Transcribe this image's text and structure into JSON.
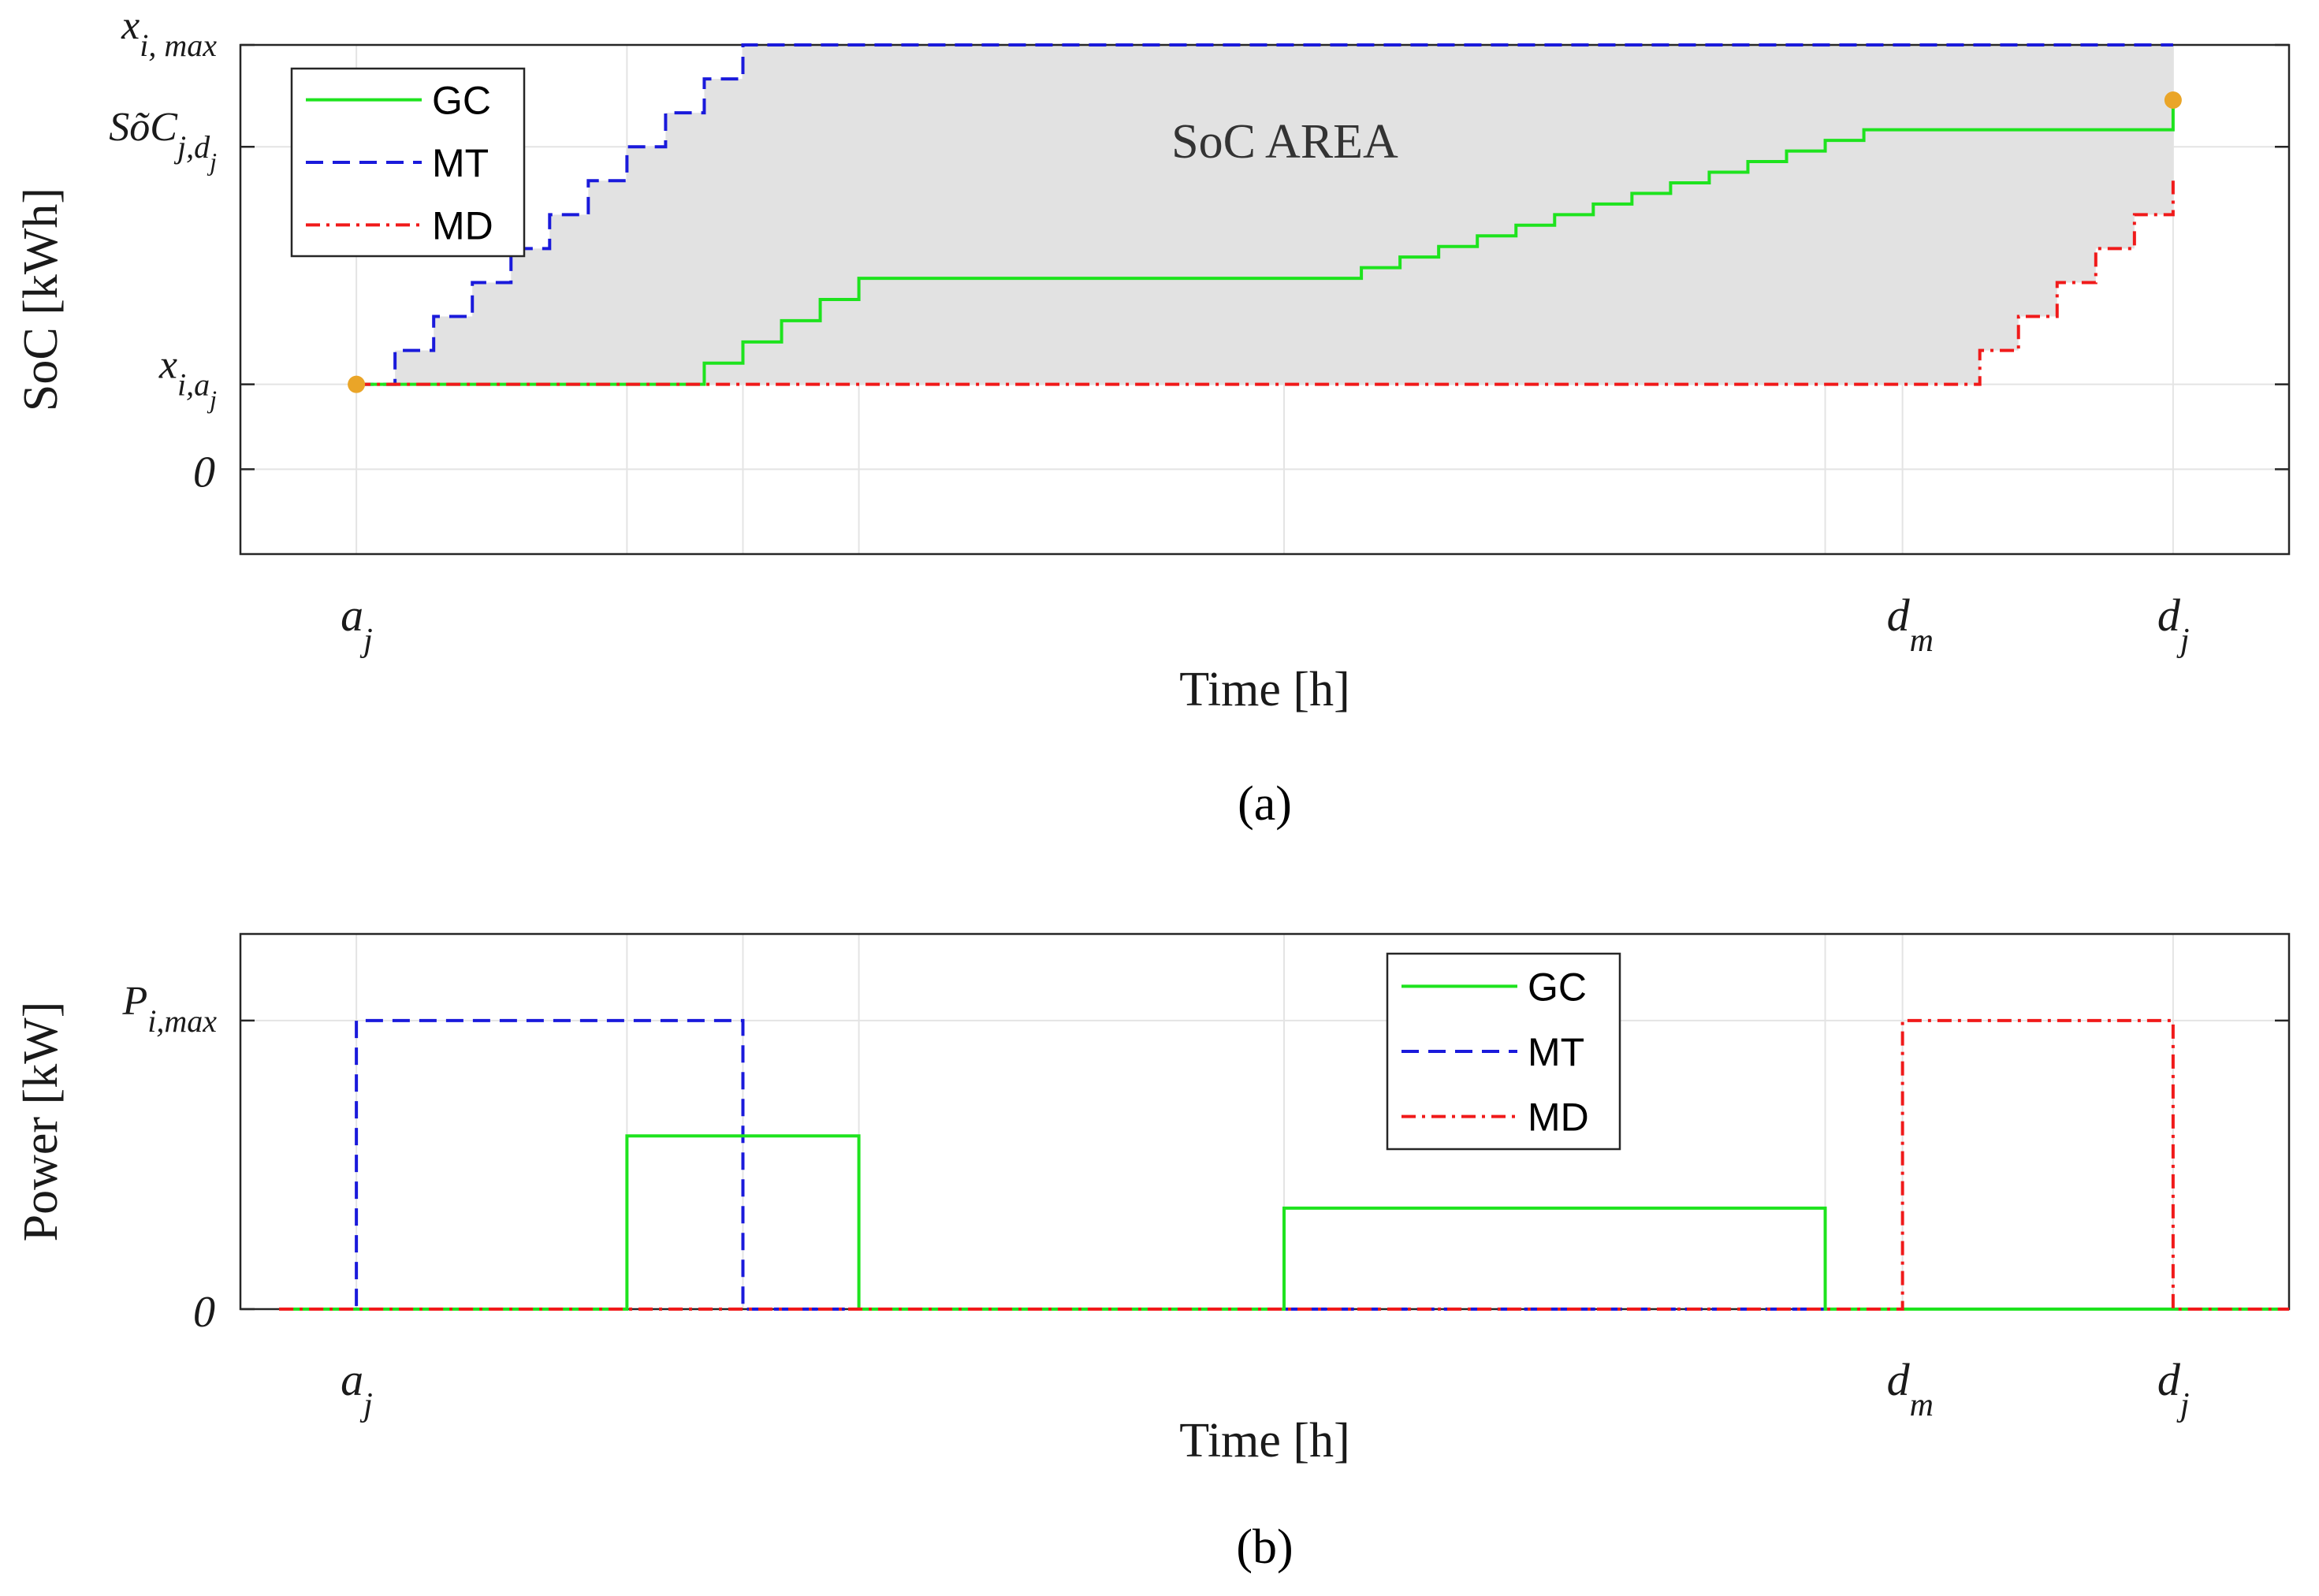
{
  "chart_data": [
    {
      "id": "a",
      "type": "line",
      "step": true,
      "caption": "(a)",
      "ylabel": "SoC [kWh]",
      "xlabel": "Time [h]",
      "area_label": "SoC AREA",
      "xlim": [
        -3,
        50
      ],
      "ylim": [
        -2,
        10
      ],
      "x_ticks": [
        {
          "x": 0,
          "main": "a",
          "sub": "j"
        },
        {
          "x": 40,
          "main": "d",
          "sub": "m"
        },
        {
          "x": 47,
          "main": "d",
          "sub": "j"
        }
      ],
      "y_ticks": [
        {
          "y": 0,
          "label": "0"
        },
        {
          "y": 2,
          "main": "x",
          "sub": "i,a",
          "subsub": "j"
        },
        {
          "y": 7.6,
          "main": "SõC",
          "sub": "j,d",
          "subsub": "j"
        },
        {
          "y": 10,
          "main": "x",
          "sub": "i, max"
        }
      ],
      "endpoints": [
        {
          "x": 0,
          "y": 2,
          "color": "#eaa528"
        },
        {
          "x": 47,
          "y": 8.7,
          "color": "#eaa528"
        }
      ],
      "legend": [
        {
          "name": "GC",
          "color": "#1ee31e",
          "dash": "solid"
        },
        {
          "name": "MT",
          "color": "#1a1adb",
          "dash": "dashed"
        },
        {
          "name": "MD",
          "color": "#f01a1a",
          "dash": "dashdot"
        }
      ],
      "series": [
        {
          "name": "MT",
          "color": "#1a1adb",
          "dash": "dashed",
          "x": [
            0,
            1,
            2,
            3,
            4,
            5,
            6,
            7,
            8,
            9,
            10,
            47
          ],
          "y": [
            2,
            2.8,
            3.6,
            4.4,
            5.2,
            6.0,
            6.8,
            7.6,
            8.4,
            9.2,
            10,
            10
          ]
        },
        {
          "name": "GC",
          "color": "#1ee31e",
          "dash": "solid",
          "x": [
            0,
            8,
            9,
            10,
            11,
            12,
            13,
            25,
            26,
            27,
            28,
            29,
            30,
            31,
            32,
            33,
            34,
            35,
            36,
            37,
            38,
            39,
            47
          ],
          "y": [
            2,
            2,
            2.5,
            3.0,
            3.5,
            4.0,
            4.5,
            4.5,
            4.75,
            5.0,
            5.25,
            5.5,
            5.75,
            6.0,
            6.25,
            6.5,
            6.75,
            7.0,
            7.25,
            7.5,
            7.75,
            8.0,
            8.7
          ]
        },
        {
          "name": "MD",
          "color": "#f01a1a",
          "dash": "dashdot",
          "x": [
            0,
            41,
            42,
            43,
            44,
            45,
            46,
            47
          ],
          "y": [
            2,
            2,
            2.8,
            3.6,
            4.4,
            5.2,
            6.0,
            6.8
          ]
        }
      ]
    },
    {
      "id": "b",
      "type": "line",
      "step": true,
      "caption": "(b)",
      "ylabel": "Power [kW]",
      "xlabel": "Time [h]",
      "xlim": [
        -3,
        50
      ],
      "ylim": [
        0,
        1.3
      ],
      "x_ticks": [
        {
          "x": 0,
          "main": "a",
          "sub": "j"
        },
        {
          "x": 40,
          "main": "d",
          "sub": "m"
        },
        {
          "x": 47,
          "main": "d",
          "sub": "j"
        }
      ],
      "y_ticks": [
        {
          "y": 0,
          "label": "0"
        },
        {
          "y": 1,
          "main": "P",
          "sub": "i,max"
        }
      ],
      "legend": [
        {
          "name": "GC",
          "color": "#1ee31e",
          "dash": "solid"
        },
        {
          "name": "MT",
          "color": "#1a1adb",
          "dash": "dashed"
        },
        {
          "name": "MD",
          "color": "#f01a1a",
          "dash": "dashdot"
        }
      ],
      "series": [
        {
          "name": "MT",
          "color": "#1a1adb",
          "dash": "dashed",
          "x": [
            -2,
            0,
            0,
            10,
            10,
            50
          ],
          "y": [
            0,
            0,
            1,
            1,
            0,
            0
          ]
        },
        {
          "name": "GC",
          "color": "#1ee31e",
          "dash": "solid",
          "x": [
            -2,
            7,
            7,
            13,
            13,
            24,
            24,
            38,
            38,
            50
          ],
          "y": [
            0,
            0,
            0.6,
            0.6,
            0,
            0,
            0.35,
            0.35,
            0,
            0
          ]
        },
        {
          "name": "MD",
          "color": "#f01a1a",
          "dash": "dashdot",
          "x": [
            -2,
            40,
            40,
            47,
            47,
            50
          ],
          "y": [
            0,
            0,
            1,
            1,
            0,
            0
          ]
        }
      ]
    }
  ]
}
